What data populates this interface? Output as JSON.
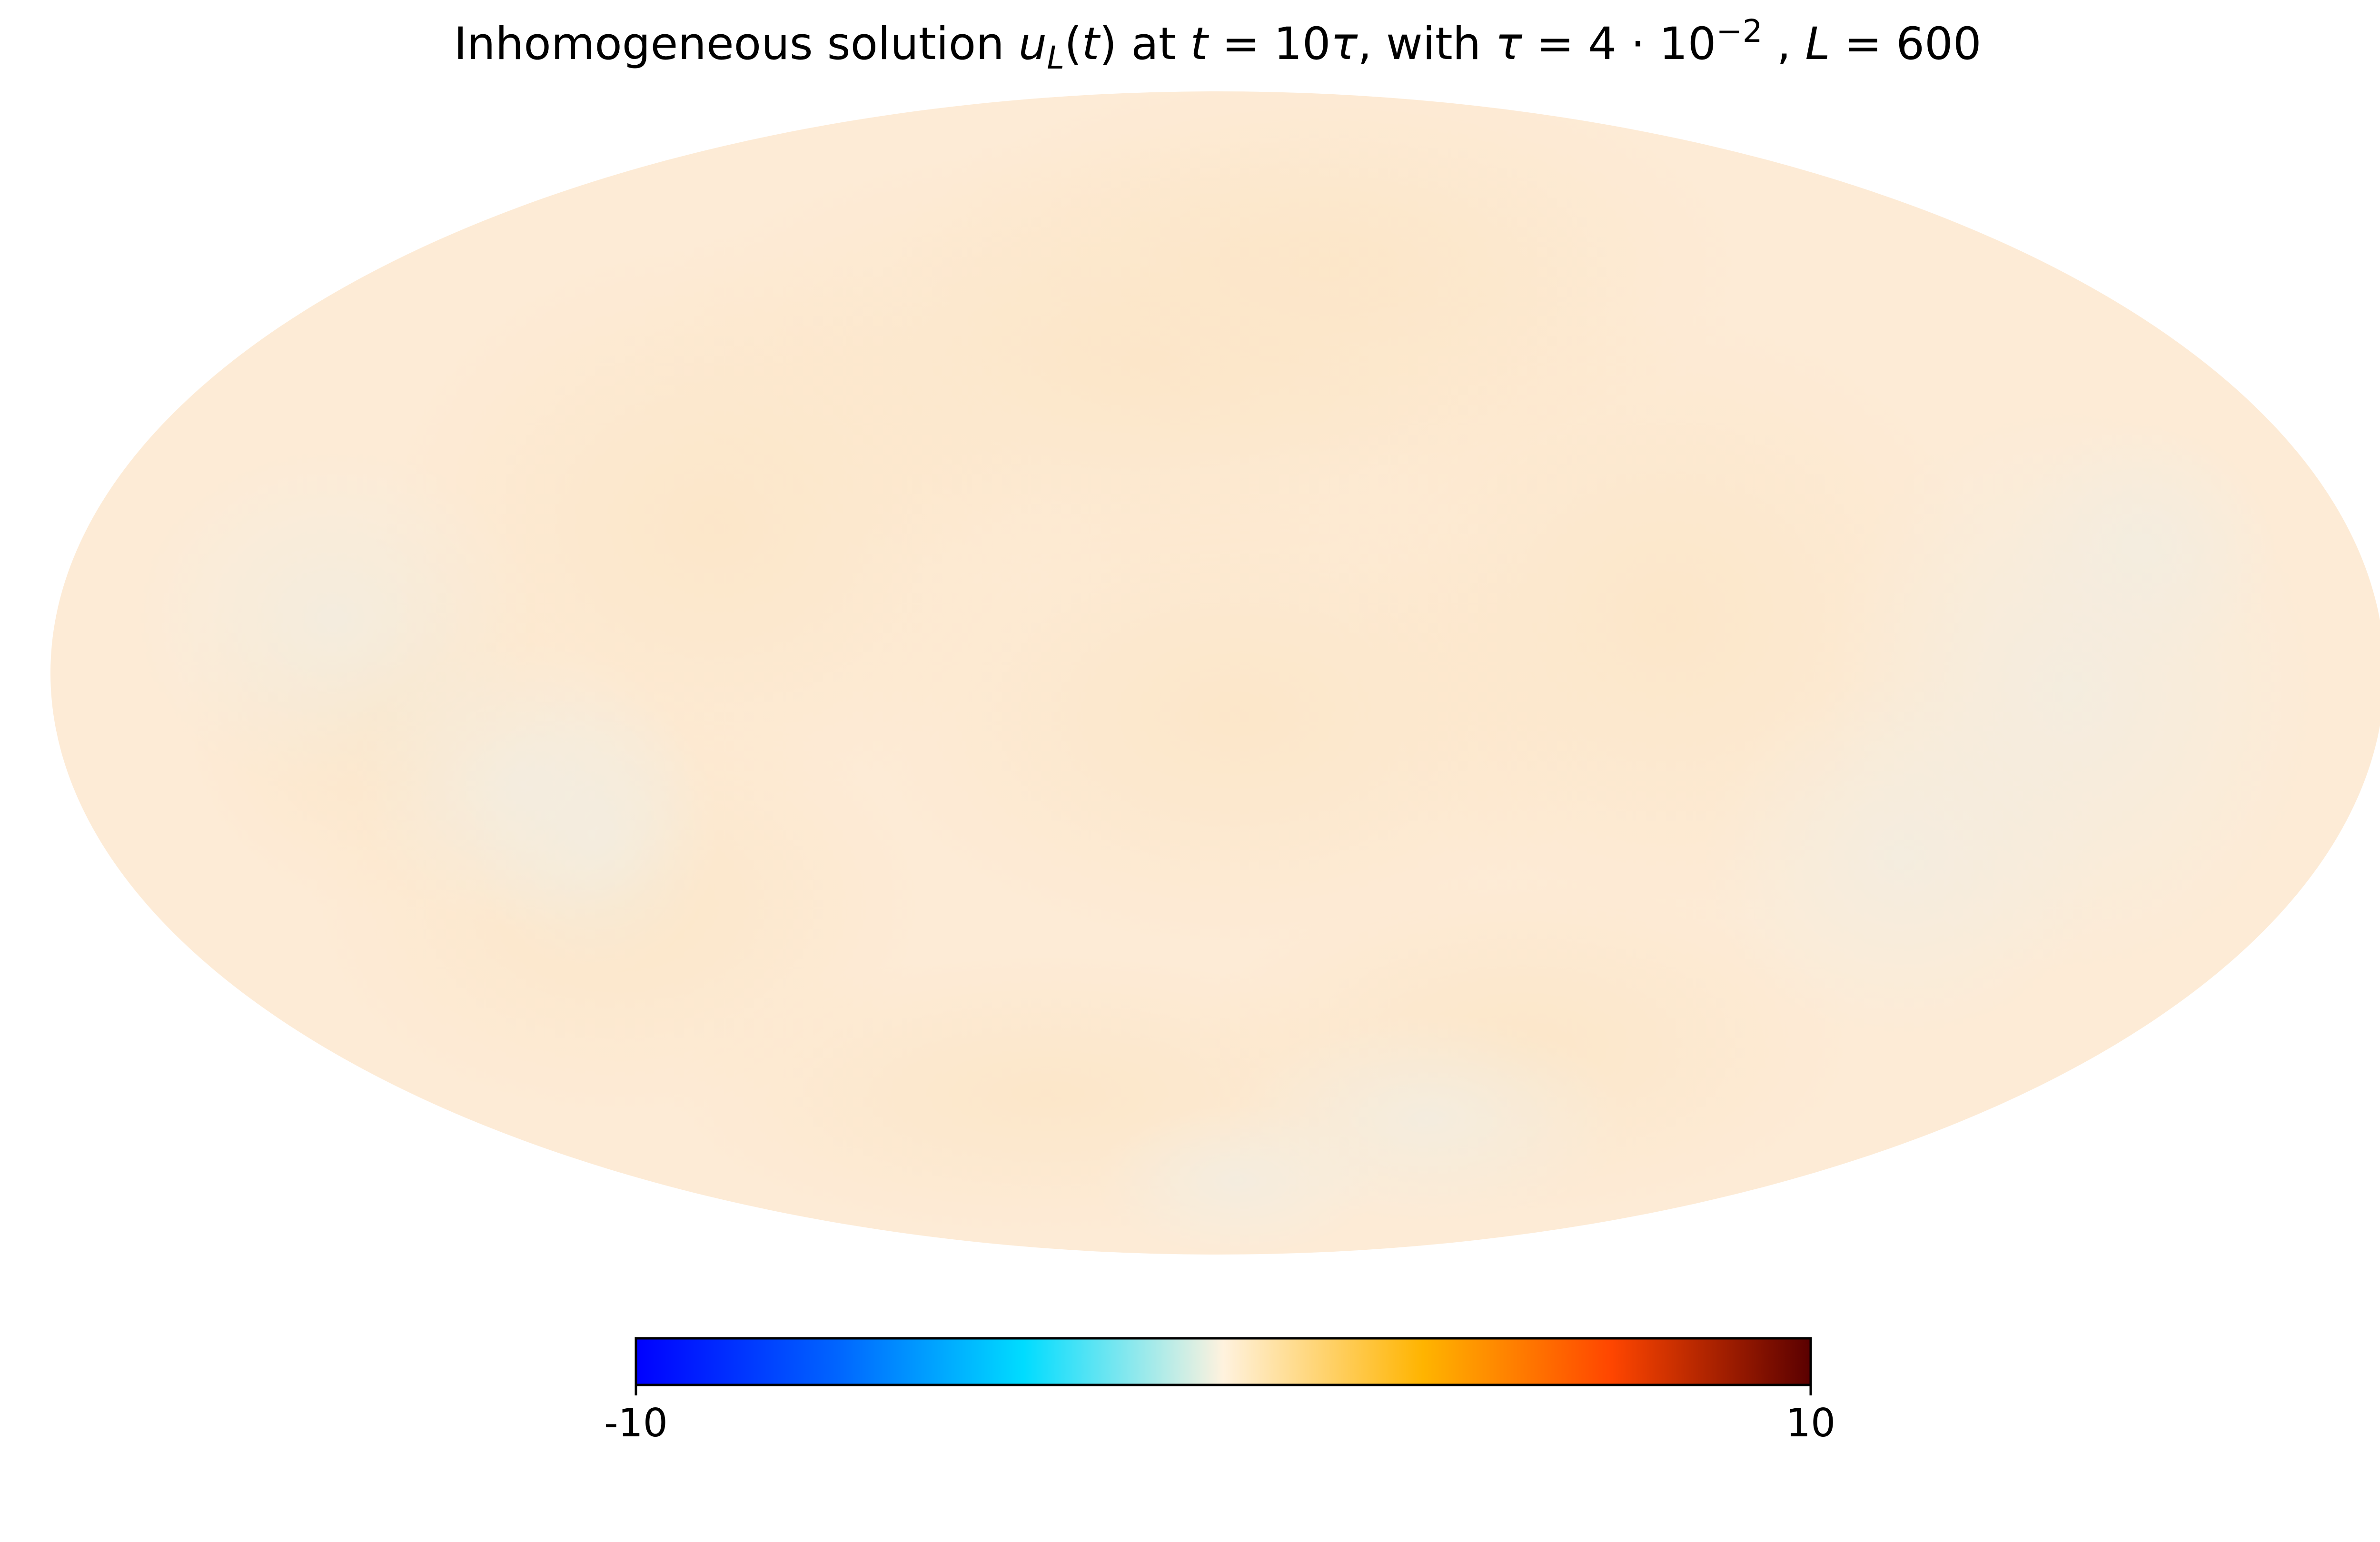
{
  "chart_data": {
    "type": "heatmap",
    "projection": "mollweide",
    "title": {
      "segments": [
        {
          "text": "Inhomogeneous solution ",
          "style": "normal"
        },
        {
          "text": "u",
          "style": "italic"
        },
        {
          "text": "L",
          "style": "italic-subscript"
        },
        {
          "text": "(",
          "style": "normal"
        },
        {
          "text": "t",
          "style": "italic"
        },
        {
          "text": ")",
          "style": "normal"
        },
        {
          "text": " at ",
          "style": "normal"
        },
        {
          "text": "t",
          "style": "italic"
        },
        {
          "text": " = 10",
          "style": "normal"
        },
        {
          "text": "τ",
          "style": "italic"
        },
        {
          "text": ", with ",
          "style": "normal"
        },
        {
          "text": "τ",
          "style": "italic"
        },
        {
          "text": " = 4 · 10",
          "style": "normal"
        },
        {
          "text": "−2",
          "style": "superscript"
        },
        {
          "text": " , ",
          "style": "normal"
        },
        {
          "text": "L",
          "style": "italic"
        },
        {
          "text": " = 600",
          "style": "normal"
        }
      ]
    },
    "colorbar": {
      "min": -10,
      "max": 10,
      "tick_labels": [
        "-10",
        "10"
      ],
      "orientation": "horizontal",
      "placement": "bottom",
      "colormap_stops": [
        {
          "value": 0.0,
          "color": "#0000ff"
        },
        {
          "value": 0.17,
          "color": "#0064ff"
        },
        {
          "value": 0.33,
          "color": "#00dcff"
        },
        {
          "value": 0.5,
          "color": "#fff2de"
        },
        {
          "value": 0.67,
          "color": "#ffb400"
        },
        {
          "value": 0.83,
          "color": "#ff4600"
        },
        {
          "value": 1.0,
          "color": "#5a0000"
        }
      ]
    },
    "field": {
      "approx_value": 0.5,
      "base_color": "#fdebd6",
      "warm_patch_color": "#fce6c8",
      "cool_patch_color": "#f3ede0"
    },
    "grid": false,
    "legend": "none"
  }
}
